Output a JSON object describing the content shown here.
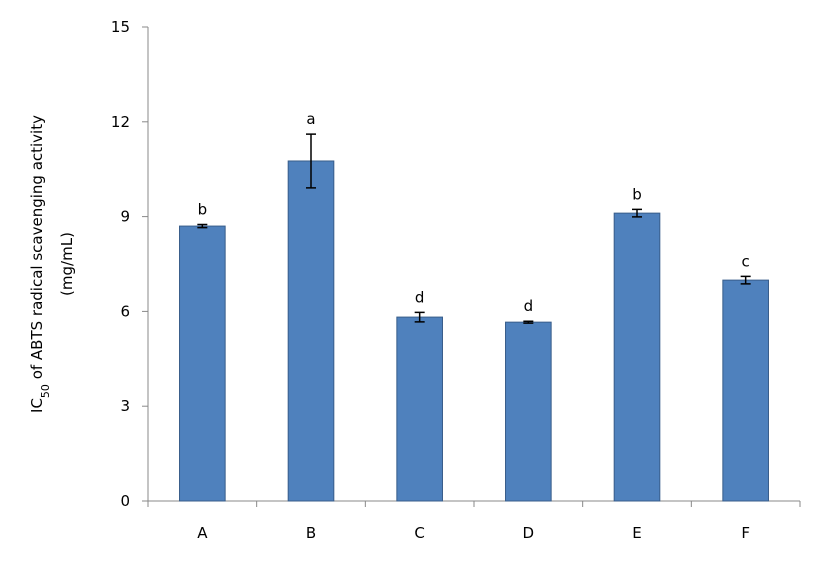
{
  "chart_data": {
    "type": "bar",
    "y_label": {
      "main": "IC",
      "sub": "50",
      "rest": " of ABTS radical scavenging activity",
      "line2": "(mg/mL)"
    },
    "categories": [
      "A",
      "B",
      "C",
      "D",
      "E",
      "F"
    ],
    "values": [
      8.7,
      10.76,
      5.82,
      5.66,
      9.11,
      6.99
    ],
    "errors": [
      0.05,
      0.85,
      0.15,
      0.03,
      0.12,
      0.12
    ],
    "annotations": [
      "b",
      "a",
      "d",
      "d",
      "b",
      "c"
    ],
    "color": "#4f81bd",
    "edge_color": "#385d8a",
    "ylim": [
      0,
      15
    ],
    "yticks": [
      0,
      3,
      6,
      9,
      12,
      15
    ],
    "grid": false
  }
}
